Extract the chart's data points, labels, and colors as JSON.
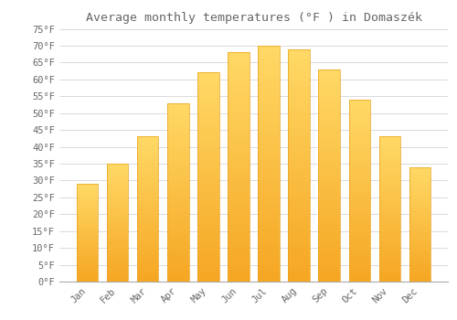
{
  "title": "Average monthly temperatures (°F ) in Domaszék",
  "months": [
    "Jan",
    "Feb",
    "Mar",
    "Apr",
    "May",
    "Jun",
    "Jul",
    "Aug",
    "Sep",
    "Oct",
    "Nov",
    "Dec"
  ],
  "values": [
    29,
    35,
    43,
    53,
    62,
    68,
    70,
    69,
    63,
    54,
    43,
    34
  ],
  "bar_color_bottom": "#F5A623",
  "bar_color_top": "#FFD966",
  "bar_edge_color": "#E8A020",
  "background_color": "#ffffff",
  "grid_color": "#cccccc",
  "text_color": "#666666",
  "ylim": [
    0,
    75
  ],
  "yticks": [
    0,
    5,
    10,
    15,
    20,
    25,
    30,
    35,
    40,
    45,
    50,
    55,
    60,
    65,
    70,
    75
  ],
  "title_fontsize": 9.5,
  "tick_fontsize": 7.5,
  "font_family": "monospace"
}
